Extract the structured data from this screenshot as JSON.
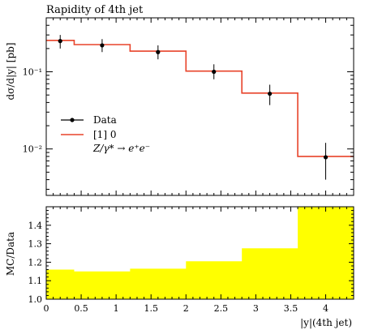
{
  "chart_data": [
    {
      "type": "line",
      "title": "Rapidity of 4th jet",
      "ylabel": "dσ/d|y| [pb]",
      "xlabel": "",
      "x_edges": [
        0,
        0.4,
        0.8,
        1.2,
        1.6,
        2.0,
        2.8,
        3.6,
        4.4
      ],
      "xlim": [
        0,
        4.4
      ],
      "ylim": [
        0.0025,
        0.5
      ],
      "yscale": "log",
      "y_ticks": [
        "10⁻¹",
        "10⁻²"
      ],
      "grid": false,
      "legend_position": "center-left",
      "series": [
        {
          "name": "Data",
          "style": "points-with-errors",
          "color": "#000000",
          "x": [
            0.2,
            0.8,
            1.6,
            2.4,
            3.2,
            4.0
          ],
          "y": [
            0.25,
            0.22,
            0.18,
            0.1,
            0.052,
            0.0078
          ],
          "yerr_low": [
            0.2,
            0.18,
            0.145,
            0.08,
            0.037,
            0.004
          ],
          "yerr_high": [
            0.3,
            0.265,
            0.22,
            0.125,
            0.068,
            0.012
          ]
        },
        {
          "name": "[1] 0",
          "style": "step",
          "color": "#e8432a",
          "edges": [
            0,
            0.4,
            1.2,
            2.0,
            2.8,
            3.6,
            4.4
          ],
          "values": [
            0.255,
            0.225,
            0.185,
            0.102,
            0.053,
            0.008
          ]
        }
      ],
      "legend_extra": "Z/γ* → e⁺e⁻"
    },
    {
      "type": "area",
      "ylabel": "MC/Data",
      "xlabel": "|y|(4th jet)",
      "xlim": [
        0,
        4.4
      ],
      "ylim": [
        1.0,
        1.5
      ],
      "x_ticks": [
        "0",
        "0.5",
        "1",
        "1.5",
        "2",
        "2.5",
        "3",
        "3.5",
        "4"
      ],
      "x_tick_values": [
        0,
        0.5,
        1,
        1.5,
        2,
        2.5,
        3,
        3.5,
        4
      ],
      "y_ticks": [
        "1.0",
        "1.1",
        "1.2",
        "1.3",
        "1.4"
      ],
      "y_tick_values": [
        1.0,
        1.1,
        1.2,
        1.3,
        1.4
      ],
      "fill_color": "#ffff00",
      "edges": [
        0,
        0.4,
        1.2,
        2.0,
        2.8,
        3.6,
        4.4
      ],
      "values": [
        1.16,
        1.15,
        1.165,
        1.205,
        1.275,
        1.5
      ]
    }
  ]
}
